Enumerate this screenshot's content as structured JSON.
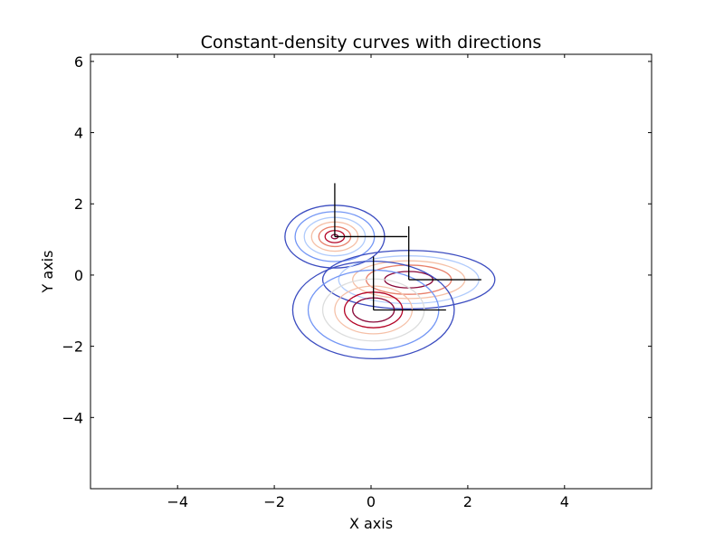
{
  "chart_data": {
    "type": "contour",
    "title": "Constant-density curves with directions",
    "xlabel": "X axis",
    "ylabel": "Y axis",
    "xlim": [
      -5.8,
      5.8
    ],
    "ylim": [
      -6.0,
      6.2
    ],
    "x_ticks": [
      -4,
      -2,
      0,
      2,
      4
    ],
    "y_ticks": [
      -4,
      -2,
      0,
      2,
      4,
      6
    ],
    "x_tick_labels": [
      "−4",
      "−2",
      "0",
      "2",
      "4"
    ],
    "y_tick_labels": [
      "−4",
      "−2",
      "0",
      "2",
      "4",
      "6"
    ],
    "grid": false,
    "legend": "none",
    "colormap": [
      "#3b4cc0",
      "#7396f5",
      "#b0cbfc",
      "#dcdddd",
      "#f5c0a7",
      "#e8806b",
      "#b40426",
      "#8a0a3a"
    ],
    "direction_color": "#000000",
    "distributions": [
      {
        "center": [
          -0.75,
          1.08
        ],
        "axis_1": [
          1.5,
          0.0
        ],
        "axis_2": [
          0.0,
          1.5
        ],
        "contour_radii": [
          [
            1.03,
            0.88
          ],
          [
            0.82,
            0.7
          ],
          [
            0.63,
            0.54
          ],
          [
            0.48,
            0.41
          ],
          [
            0.33,
            0.28
          ],
          [
            0.2,
            0.17
          ],
          [
            0.07,
            0.06
          ]
        ]
      },
      {
        "center": [
          0.78,
          -0.13
        ],
        "axis_1": [
          1.5,
          0.0
        ],
        "axis_2": [
          0.0,
          1.5
        ],
        "contour_radii": [
          [
            1.78,
            0.82
          ],
          [
            1.45,
            0.67
          ],
          [
            1.16,
            0.53
          ],
          [
            0.88,
            0.41
          ],
          [
            0.5,
            0.23
          ]
        ]
      },
      {
        "center": [
          0.05,
          -0.98
        ],
        "axis_1": [
          1.5,
          0.0
        ],
        "axis_2": [
          0.0,
          1.5
        ],
        "contour_radii": [
          [
            1.67,
            1.37
          ],
          [
            1.35,
            1.12
          ],
          [
            1.05,
            0.87
          ],
          [
            0.8,
            0.67
          ],
          [
            0.6,
            0.5
          ],
          [
            0.43,
            0.34
          ]
        ]
      }
    ]
  }
}
